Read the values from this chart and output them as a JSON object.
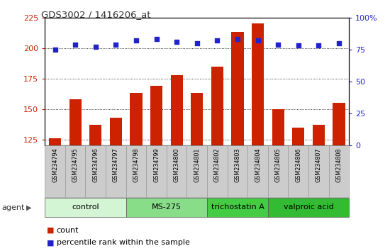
{
  "title": "GDS3002 / 1416206_at",
  "samples": [
    "GSM234794",
    "GSM234795",
    "GSM234796",
    "GSM234797",
    "GSM234798",
    "GSM234799",
    "GSM234800",
    "GSM234801",
    "GSM234802",
    "GSM234803",
    "GSM234804",
    "GSM234805",
    "GSM234806",
    "GSM234807",
    "GSM234808"
  ],
  "counts": [
    126,
    158,
    137,
    143,
    163,
    169,
    178,
    163,
    185,
    213,
    220,
    150,
    135,
    137,
    155
  ],
  "percentiles": [
    75,
    79,
    77,
    79,
    82,
    83,
    81,
    80,
    82,
    83,
    82,
    79,
    78,
    78,
    80
  ],
  "groups": [
    {
      "label": "control",
      "start": 0,
      "end": 3,
      "color": "#d4f5d4"
    },
    {
      "label": "MS-275",
      "start": 4,
      "end": 7,
      "color": "#88dd88"
    },
    {
      "label": "trichostatin A",
      "start": 8,
      "end": 10,
      "color": "#44cc44"
    },
    {
      "label": "valproic acid",
      "start": 11,
      "end": 14,
      "color": "#33bb33"
    }
  ],
  "ylim_left": [
    120,
    225
  ],
  "ylim_right": [
    0,
    100
  ],
  "yticks_left": [
    125,
    150,
    175,
    200,
    225
  ],
  "yticks_right": [
    0,
    25,
    50,
    75,
    100
  ],
  "bar_color": "#cc2200",
  "dot_color": "#2222cc",
  "background_color": "#ffffff",
  "plot_bg_color": "#ffffff",
  "grid_color": "#000000",
  "tick_label_color_left": "#cc2200",
  "tick_label_color_right": "#2222cc",
  "agent_label": "agent",
  "legend_count_label": "count",
  "legend_pct_label": "percentile rank within the sample",
  "sample_box_color": "#cccccc",
  "sample_box_edge": "#999999"
}
